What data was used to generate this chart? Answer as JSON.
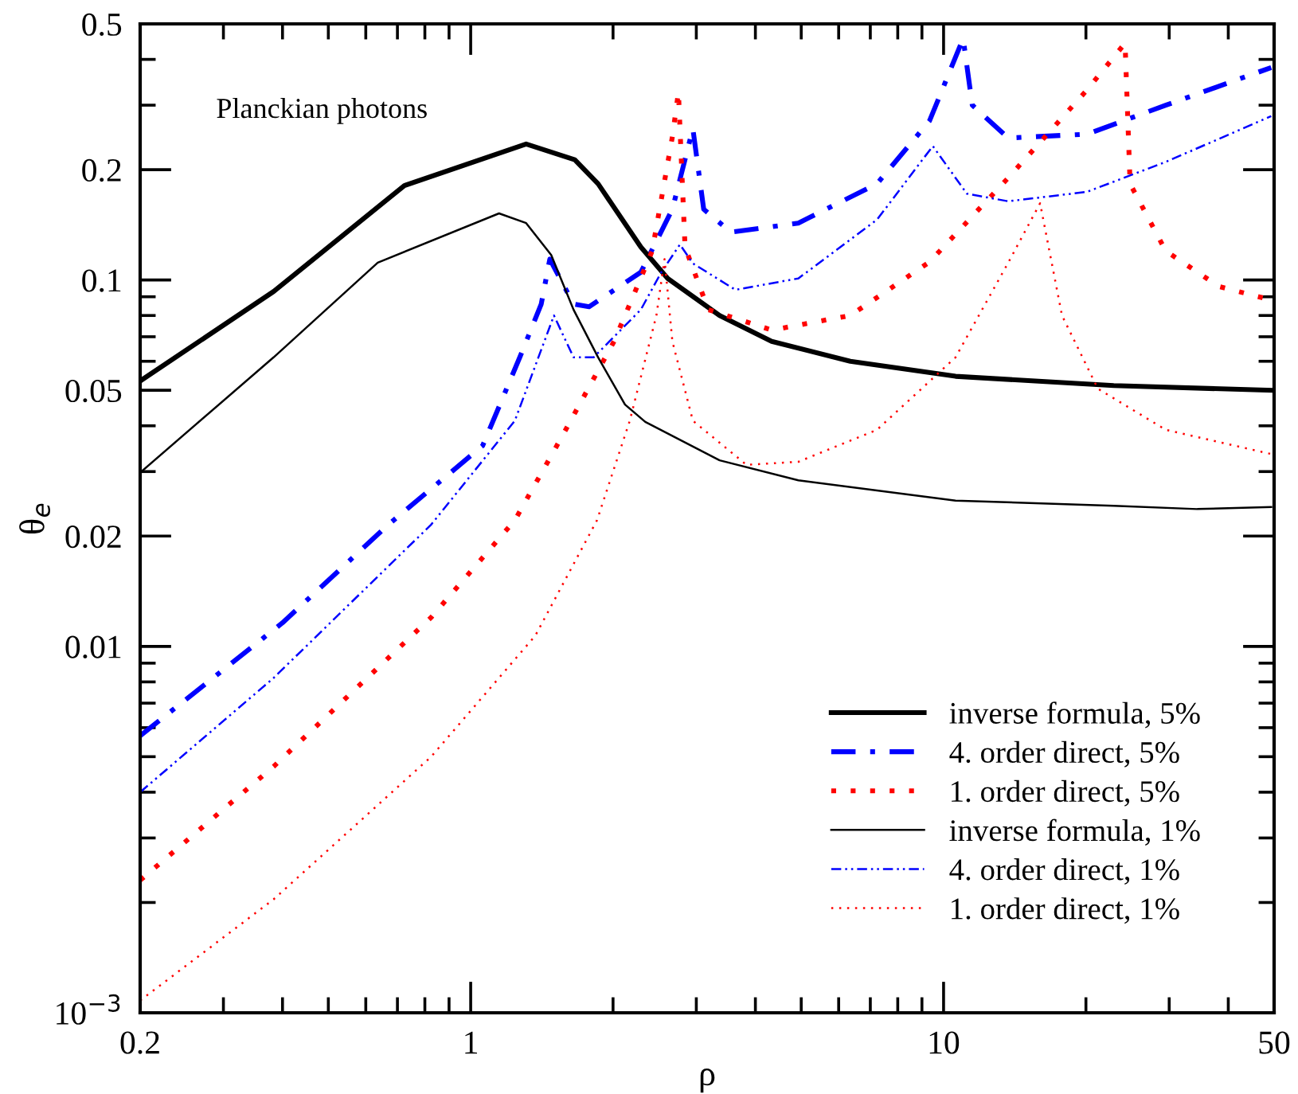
{
  "chart_data": {
    "type": "line",
    "xlabel": "ρ",
    "ylabel": "θ$_{e}$",
    "log": "xy",
    "grid": false,
    "legend": "bottom right",
    "annotations": [
      "Planckian photons"
    ],
    "xlim": [
      0.2,
      50
    ],
    "ylim": [
      0.001,
      0.5
    ],
    "xticks": [
      0.2,
      {
        "value": 0.3,
        "label": null
      },
      {
        "value": 0.4,
        "label": null
      },
      {
        "value": 0.5,
        "label": null
      },
      {
        "value": 0.6,
        "label": null
      },
      {
        "value": 0.7,
        "label": null
      },
      {
        "value": 0.8,
        "label": null
      },
      {
        "value": 0.9,
        "label": null
      },
      1,
      {
        "value": 2,
        "label": null
      },
      {
        "value": 3,
        "label": null
      },
      {
        "value": 4,
        "label": null
      },
      {
        "value": 5,
        "label": null
      },
      {
        "value": 6,
        "label": null
      },
      {
        "value": 7,
        "label": null
      },
      {
        "value": 8,
        "label": null
      },
      {
        "value": 9,
        "label": null
      },
      10,
      {
        "value": 20,
        "label": null
      },
      {
        "value": 30,
        "label": null
      },
      {
        "value": 40,
        "label": null
      },
      50
    ],
    "yticks": [
      {
        "value": 0.001,
        "label": "10$^{−3}$"
      },
      {
        "value": 0.002,
        "label": null
      },
      {
        "value": 0.003,
        "label": null
      },
      {
        "value": 0.004,
        "label": null
      },
      {
        "value": 0.005,
        "label": null
      },
      {
        "value": 0.006,
        "label": null
      },
      {
        "value": 0.007,
        "label": null
      },
      {
        "value": 0.008,
        "label": null
      },
      {
        "value": 0.009,
        "label": null
      },
      0.01,
      0.02,
      {
        "value": 0.03,
        "label": null
      },
      {
        "value": 0.04,
        "label": null
      },
      0.05,
      {
        "value": 0.06,
        "label": null
      },
      {
        "value": 0.07,
        "label": null
      },
      {
        "value": 0.08,
        "label": null
      },
      {
        "value": 0.09,
        "label": null
      },
      0.1,
      0.2,
      {
        "value": 0.3,
        "label": null
      },
      {
        "value": 0.4,
        "label": null
      },
      0.5
    ],
    "series": [
      {
        "name": "inverse formula, 5%",
        "color": "#000000",
        "line_style": "solid",
        "x": [
          0.2,
          0.383,
          0.724,
          1.31,
          1.66,
          1.86,
          2.29,
          2.61,
          3.36,
          4.33,
          6.35,
          10.6,
          22.9,
          49.3
        ],
        "values": [
          0.053,
          0.093,
          0.181,
          0.235,
          0.213,
          0.183,
          0.123,
          0.101,
          0.08,
          0.068,
          0.06,
          0.0546,
          0.0515,
          0.05
        ]
      },
      {
        "name": "4. order direct, 5%",
        "color": "#0000ff",
        "line_style": "dashdot",
        "x": [
          0.2,
          0.4,
          0.67,
          1.06,
          1.27,
          1.41,
          1.47,
          1.65,
          1.78,
          2.29,
          2.67,
          2.95,
          3.11,
          3.55,
          4.93,
          7.23,
          9.34,
          11.0,
          11.5,
          13.7,
          20.1,
          29.5,
          49.3
        ],
        "values": [
          0.0057,
          0.0116,
          0.0215,
          0.0353,
          0.0615,
          0.086,
          0.114,
          0.086,
          0.0845,
          0.105,
          0.156,
          0.259,
          0.156,
          0.135,
          0.143,
          0.183,
          0.272,
          0.456,
          0.3,
          0.244,
          0.25,
          0.3,
          0.38
        ]
      },
      {
        "name": "1. order direct, 5%",
        "color": "#ff0000",
        "line_style": "dotted",
        "x": [
          0.2,
          0.383,
          0.825,
          1.24,
          1.56,
          2.01,
          2.42,
          2.53,
          2.67,
          2.75,
          2.84,
          3.18,
          4.33,
          6.35,
          9.34,
          13.7,
          20.1,
          24.2,
          24.8,
          29.5,
          38.2,
          48
        ],
        "values": [
          0.0023,
          0.0047,
          0.012,
          0.0221,
          0.0374,
          0.068,
          0.12,
          0.166,
          0.246,
          0.326,
          0.123,
          0.083,
          0.073,
          0.08,
          0.112,
          0.19,
          0.33,
          0.443,
          0.183,
          0.12,
          0.096,
          0.089
        ]
      },
      {
        "name": "inverse formula, 1%",
        "color": "#000000",
        "line_style": "solid",
        "x": [
          0.2,
          0.383,
          0.636,
          1.148,
          1.31,
          1.48,
          1.65,
          1.86,
          2.12,
          2.34,
          3.36,
          4.93,
          10.6,
          22.9,
          34.4,
          49.3
        ],
        "values": [
          0.0298,
          0.0615,
          0.1115,
          0.152,
          0.143,
          0.117,
          0.083,
          0.0615,
          0.0457,
          0.041,
          0.0322,
          0.0284,
          0.025,
          0.0242,
          0.0237,
          0.024
        ]
      },
      {
        "name": "4. order direct, 1%",
        "color": "#0000ff",
        "line_style": "dashdotdot",
        "x": [
          0.2,
          0.383,
          0.825,
          1.24,
          1.5,
          1.65,
          1.82,
          2.29,
          2.53,
          2.77,
          2.95,
          3.63,
          4.93,
          7.23,
          9.49,
          11.2,
          13.7,
          20.1,
          29.5,
          49.3
        ],
        "values": [
          0.004,
          0.0082,
          0.0215,
          0.0413,
          0.08,
          0.0615,
          0.0615,
          0.083,
          0.105,
          0.125,
          0.111,
          0.094,
          0.101,
          0.146,
          0.232,
          0.172,
          0.164,
          0.174,
          0.21,
          0.28
        ]
      },
      {
        "name": "1. order direct, 1%",
        "color": "#ff0000",
        "line_style": "dotted",
        "x": [
          0.2,
          0.383,
          0.825,
          1.37,
          1.85,
          2.17,
          2.47,
          2.57,
          2.67,
          2.95,
          3.83,
          4.93,
          7.23,
          10.6,
          13.7,
          16.0,
          17.8,
          21.2,
          29.5,
          49.3
        ],
        "values": [
          0.00108,
          0.00204,
          0.005,
          0.0107,
          0.0221,
          0.0413,
          0.08,
          0.114,
          0.068,
          0.0413,
          0.0313,
          0.0319,
          0.039,
          0.0615,
          0.1115,
          0.162,
          0.08,
          0.0505,
          0.039,
          0.0335
        ]
      }
    ]
  }
}
